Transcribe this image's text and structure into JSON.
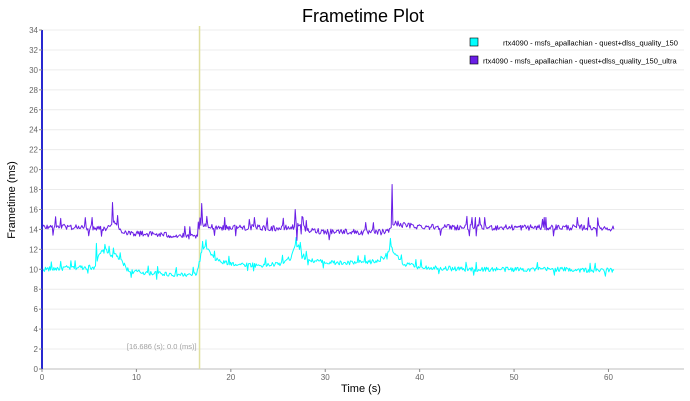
{
  "chart_data": {
    "type": "line",
    "title": "Frametime Plot",
    "xlabel": "Time (s)",
    "ylabel": "Frametime (ms)",
    "xlim": [
      0,
      68
    ],
    "ylim": [
      0,
      34
    ],
    "x_ticks": [
      0,
      10,
      20,
      30,
      40,
      50,
      60
    ],
    "y_ticks": [
      0,
      2,
      4,
      6,
      8,
      10,
      12,
      14,
      16,
      18,
      20,
      22,
      24,
      26,
      28,
      30,
      32,
      34
    ],
    "grid": true,
    "legend_position": "top-right",
    "cursor": {
      "x": 16.686,
      "label": "[16.686 (s); 0.0 (ms)]",
      "color": "#e0e0a0"
    },
    "series": [
      {
        "name": "rtx4090 - msfs_apallachian - quest+dlss_quality_150",
        "color": "#00ffff",
        "jitter": 0.25,
        "x": [
          0,
          2,
          4,
          5.5,
          6.2,
          6.8,
          7.3,
          7.8,
          8.5,
          9.2,
          10.5,
          12,
          14,
          15.5,
          16.4,
          16.9,
          17.4,
          18,
          19,
          21,
          23,
          25,
          26.3,
          26.8,
          27.2,
          27.8,
          28.5,
          30,
          32,
          34,
          35.5,
          36.4,
          36.9,
          37.4,
          38.2,
          39.5,
          41,
          43,
          45,
          50,
          55,
          58,
          60.6
        ],
        "y": [
          10,
          10.1,
          10.2,
          10.2,
          11.6,
          12.0,
          11.4,
          11.5,
          10.7,
          9.8,
          9.7,
          9.6,
          9.5,
          9.4,
          9.6,
          11.7,
          12.3,
          11.3,
          10.7,
          10.5,
          10.4,
          10.5,
          11.1,
          12.5,
          12.3,
          11.2,
          10.9,
          10.7,
          10.6,
          10.7,
          10.8,
          11.4,
          12.2,
          11.5,
          10.6,
          10.3,
          10.2,
          10.1,
          10.0,
          10.0,
          10.0,
          9.9,
          9.9
        ]
      },
      {
        "name": "rtx4090 - msfs_apallachian - quest+dlss_quality_150_ultra",
        "color": "#6a1ee6",
        "jitter": 0.3,
        "x": [
          0,
          2,
          4,
          6,
          7,
          7.5,
          8.2,
          9,
          10,
          12,
          14,
          15.5,
          16.3,
          16.9,
          17.5,
          19,
          21,
          23,
          25,
          26.6,
          27.2,
          28,
          30,
          32,
          34,
          35.5,
          36.7,
          37.1,
          37.6,
          38.5,
          40,
          45,
          50,
          55,
          58,
          60.6
        ],
        "y": [
          14.2,
          14.3,
          14.2,
          14.2,
          14.1,
          14.9,
          14.0,
          13.7,
          13.6,
          13.5,
          13.4,
          13.3,
          13.2,
          14.5,
          14.3,
          14.2,
          14.2,
          14.2,
          14.1,
          14.2,
          14.6,
          13.9,
          13.8,
          13.8,
          13.7,
          13.7,
          13.8,
          14.5,
          14.6,
          14.4,
          14.3,
          14.2,
          14.2,
          14.2,
          14.2,
          14.1
        ]
      }
    ],
    "spikes": [
      [
        {
          "x": 5.8,
          "y": 12.6
        },
        {
          "x": 6.7,
          "y": 12.5
        },
        {
          "x": 26.9,
          "y": 13.2
        },
        {
          "x": 36.9,
          "y": 13.1
        },
        {
          "x": 17.0,
          "y": 12.8
        }
      ],
      [
        {
          "x": 2.0,
          "y": 15.1
        },
        {
          "x": 7.5,
          "y": 16.7
        },
        {
          "x": 8.0,
          "y": 15.4
        },
        {
          "x": 16.9,
          "y": 16.6
        },
        {
          "x": 26.8,
          "y": 16.0
        },
        {
          "x": 27.6,
          "y": 15.2
        },
        {
          "x": 37.1,
          "y": 18.5
        },
        {
          "x": 22.0,
          "y": 15.0
        },
        {
          "x": 45.0,
          "y": 15.3
        },
        {
          "x": 53.0,
          "y": 15.0
        },
        {
          "x": 27.0,
          "y": 12.9
        }
      ]
    ]
  }
}
